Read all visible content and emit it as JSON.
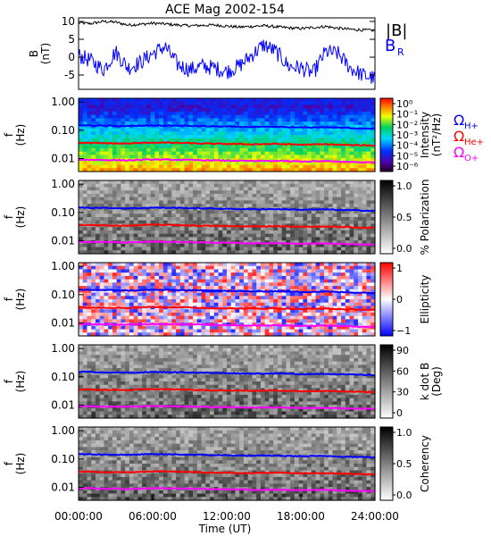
{
  "title": "ACE Mag 2002-154",
  "x_axis": {
    "label": "Time (UT)",
    "ticks": [
      "00:00:00",
      "06:00:00",
      "12:00:00",
      "18:00:00",
      "24:00:00"
    ]
  },
  "colors": {
    "B_total": "#000000",
    "B_R": "#0000ff",
    "H_plus": "#0000ff",
    "He_plus": "#ff0000",
    "O_plus": "#ff00ff"
  },
  "legends": {
    "B_total": "|B|",
    "B_R": "B",
    "B_R_sub": "R",
    "omega": "Ω",
    "H_sub": "H+",
    "He_sub": "He+",
    "O_sub": "O+"
  },
  "chart_data": [
    {
      "type": "line",
      "panel": "field",
      "ylabel": "B",
      "ylabel_unit": "(nT)",
      "ylim": [
        -9,
        11
      ],
      "yticks": [
        "10",
        "5",
        "0",
        "-5"
      ],
      "x_hours": [
        0,
        1,
        2,
        3,
        4,
        5,
        6,
        7,
        8,
        9,
        10,
        11,
        12,
        13,
        14,
        15,
        16,
        17,
        18,
        19,
        20,
        21,
        22,
        23,
        24
      ],
      "series": [
        {
          "name": "|B|",
          "values": [
            9.6,
            9.4,
            10.0,
            9.8,
            9.0,
            9.2,
            9.5,
            9.3,
            9.0,
            8.8,
            8.9,
            9.0,
            8.7,
            8.4,
            8.6,
            8.8,
            8.5,
            8.2,
            8.0,
            8.3,
            8.6,
            8.1,
            7.8,
            7.6,
            7.5
          ]
        },
        {
          "name": "B_R",
          "values": [
            0.5,
            -1.0,
            -3.5,
            1.5,
            -3.0,
            -1.5,
            1.0,
            3.0,
            -2.0,
            -3.5,
            -2.5,
            -3.0,
            -4.0,
            -2.5,
            0.5,
            3.5,
            1.5,
            -2.5,
            -3.0,
            -4.5,
            1.5,
            1.0,
            -3.0,
            -5.0,
            -6.0
          ]
        }
      ]
    },
    {
      "type": "heatmap",
      "panel": "intensity",
      "ylabel": "f",
      "ylabel_unit": "(Hz)",
      "yticks": [
        "1.00",
        "0.10",
        "0.01"
      ],
      "colorbar_label": "Intensity",
      "colorbar_unit": "(nT²/Hz)",
      "colorbar_ticks": [
        "10⁰",
        "10⁻¹",
        "10⁻²",
        "10⁻³",
        "10⁻⁴",
        "10⁻⁵",
        "10⁻⁶"
      ]
    },
    {
      "type": "heatmap",
      "panel": "polarization",
      "ylabel": "f",
      "ylabel_unit": "(Hz)",
      "yticks": [
        "1.00",
        "0.10",
        "0.01"
      ],
      "colorbar_label": "% Polarization",
      "colorbar_ticks": [
        "1.0",
        "0.5",
        "0.0"
      ]
    },
    {
      "type": "heatmap",
      "panel": "ellipticity",
      "ylabel": "f",
      "ylabel_unit": "(Hz)",
      "yticks": [
        "1.00",
        "0.10",
        "0.01"
      ],
      "colorbar_label": "Ellipticity",
      "colorbar_ticks": [
        "1",
        "0",
        "−1"
      ]
    },
    {
      "type": "heatmap",
      "panel": "kdotb",
      "ylabel": "f",
      "ylabel_unit": "(Hz)",
      "yticks": [
        "1.00",
        "0.10",
        "0.01"
      ],
      "colorbar_label": "k dot B",
      "colorbar_unit": "(Deg)",
      "colorbar_ticks": [
        "90",
        "60",
        "30",
        "0"
      ]
    },
    {
      "type": "heatmap",
      "panel": "coherency",
      "ylabel": "f",
      "ylabel_unit": "(Hz)",
      "yticks": [
        "1.00",
        "0.10",
        "0.01"
      ],
      "colorbar_label": "Coherency",
      "colorbar_ticks": [
        "1.0",
        "0.5",
        "0.0"
      ]
    }
  ],
  "gyrofrequency_lines": {
    "x_hours": [
      0,
      2,
      4,
      6,
      8,
      10,
      12,
      14,
      16,
      18,
      20,
      22,
      24
    ],
    "H_plus_hz": [
      0.15,
      0.145,
      0.14,
      0.148,
      0.145,
      0.14,
      0.135,
      0.13,
      0.132,
      0.125,
      0.128,
      0.12,
      0.115
    ],
    "He_plus_hz": [
      0.036,
      0.035,
      0.034,
      0.037,
      0.036,
      0.034,
      0.033,
      0.032,
      0.033,
      0.031,
      0.032,
      0.03,
      0.029
    ],
    "O_plus_hz": [
      0.0092,
      0.009,
      0.0087,
      0.0093,
      0.0091,
      0.0088,
      0.0085,
      0.0082,
      0.0083,
      0.0079,
      0.0081,
      0.0076,
      0.0073
    ]
  }
}
